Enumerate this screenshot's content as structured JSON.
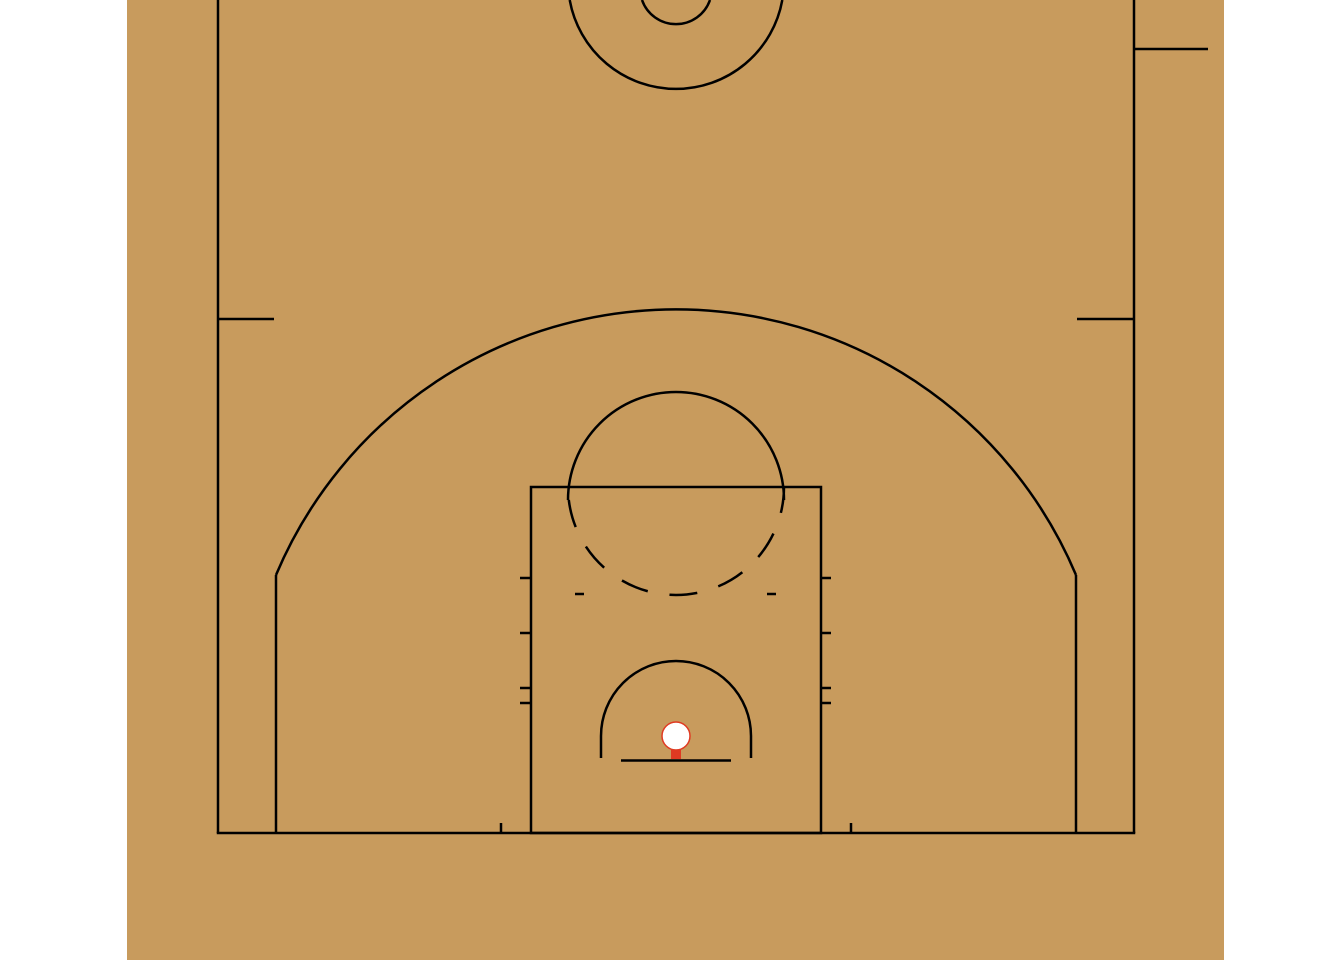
{
  "court": {
    "view": "half-court",
    "colors": {
      "page_background": "#ffffff",
      "floor": "#c89b5d",
      "lines": "#000000",
      "rim_fill": "#ffffff",
      "rim_stroke": "#e03a22",
      "rim_neck": "#e03a22"
    },
    "elements": [
      "sideline-left",
      "sideline-right",
      "baseline",
      "three-point-line",
      "corner-three-left",
      "corner-three-right",
      "paint",
      "free-throw-circle",
      "free-throw-circle-dashed-half",
      "restricted-area-arc",
      "backboard",
      "rim",
      "lane-hash-marks",
      "coaching-box-marks",
      "center-circle",
      "center-circle-inner"
    ]
  }
}
